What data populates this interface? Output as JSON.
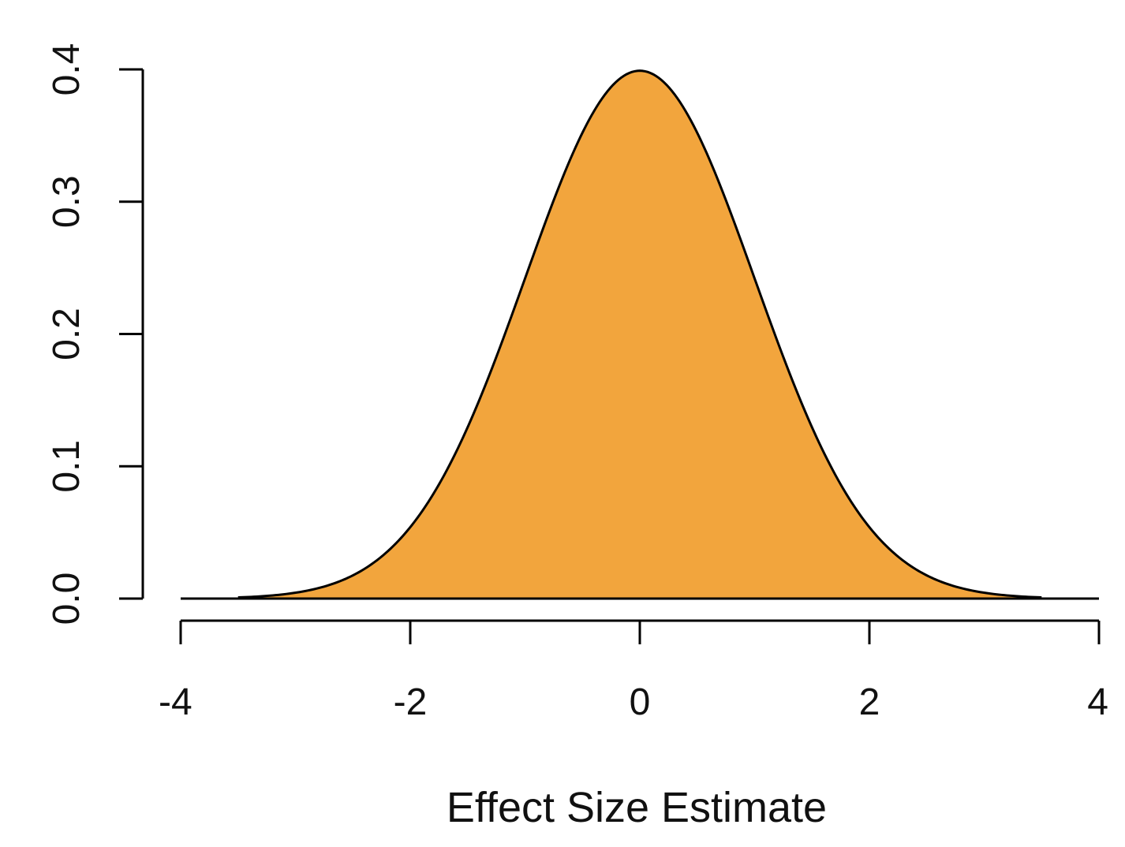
{
  "chart_data": {
    "type": "area",
    "title": "",
    "xlabel": "Effect Size Estimate",
    "ylabel": "",
    "xlim": [
      -4,
      4
    ],
    "ylim": [
      0,
      0.4
    ],
    "x_ticks": [
      "-4",
      "-2",
      "0",
      "2",
      "4"
    ],
    "y_ticks": [
      "0.0",
      "0.1",
      "0.2",
      "0.3",
      "0.4"
    ],
    "grid": false,
    "fill_color": "#F2A53D",
    "line_color": "#000000",
    "series": [
      {
        "x": [
          -3.5,
          -3.0,
          -2.5,
          -2.0,
          -1.5,
          -1.0,
          -0.5,
          0.0,
          0.5,
          1.0,
          1.5,
          2.0,
          2.5,
          3.0,
          3.5
        ],
        "y": [
          0.001,
          0.004,
          0.018,
          0.054,
          0.13,
          0.242,
          0.352,
          0.399,
          0.352,
          0.242,
          0.13,
          0.054,
          0.018,
          0.004,
          0.001
        ]
      }
    ]
  }
}
